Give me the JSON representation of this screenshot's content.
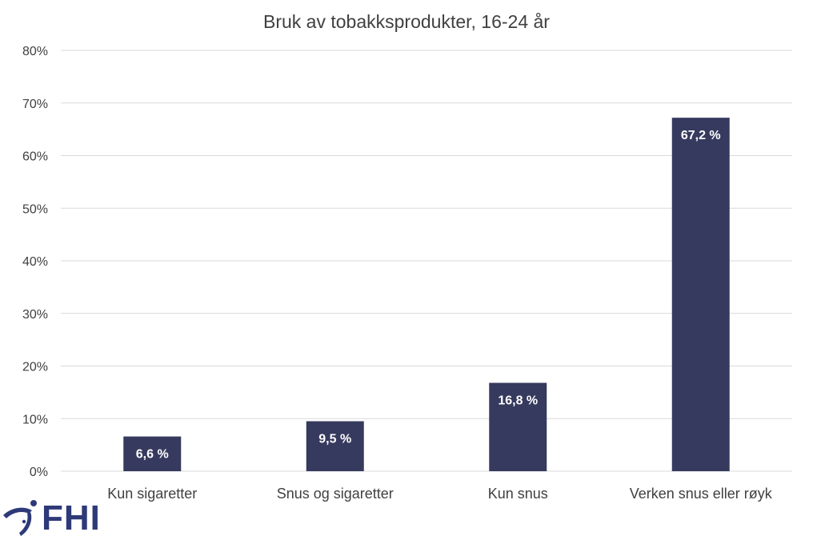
{
  "chart_data": {
    "type": "bar",
    "title": "Bruk av tobakksprodukter, 16-24 år",
    "xlabel": "",
    "ylabel": "",
    "categories": [
      "Kun sigaretter",
      "Snus og sigaretter",
      "Kun snus",
      "Verken snus eller røyk"
    ],
    "values": [
      6.6,
      9.5,
      16.8,
      67.2
    ],
    "data_labels": [
      "6,6 %",
      "9,5 %",
      "16,8 %",
      "67,2 %"
    ],
    "ylim": [
      0,
      80
    ],
    "yticks": [
      0,
      10,
      20,
      30,
      40,
      50,
      60,
      70,
      80
    ],
    "ytick_labels": [
      "0%",
      "10%",
      "20%",
      "30%",
      "40%",
      "50%",
      "60%",
      "70%",
      "80%"
    ],
    "grid": true,
    "legend": "none",
    "colors": {
      "bar": "#363a5e",
      "grid": "#d9d9d9",
      "text": "#404040",
      "data_label": "#ffffff"
    }
  },
  "logo": {
    "text": "FHI",
    "color": "#2e3a78"
  }
}
